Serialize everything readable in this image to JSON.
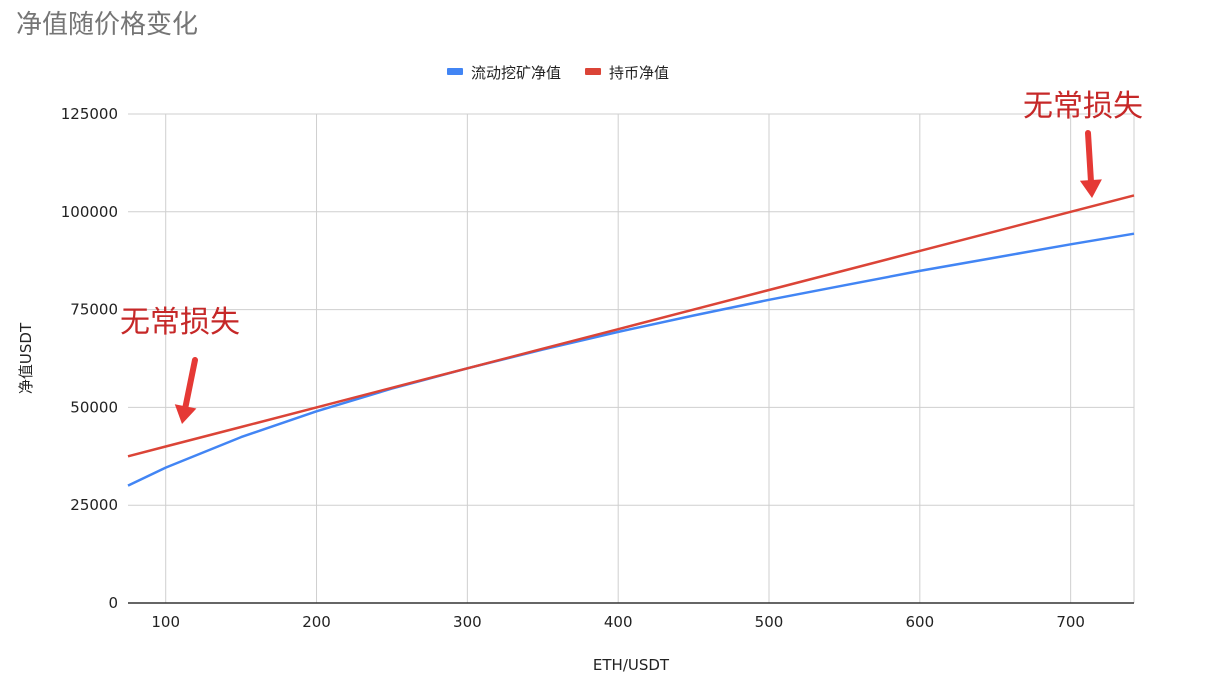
{
  "chart_data": {
    "type": "line",
    "title": "净值随价格变化",
    "xlabel": "ETH/USDT",
    "ylabel": "净值USDT",
    "xlim": [
      75,
      742
    ],
    "ylim": [
      0,
      125000
    ],
    "x_ticks": [
      100,
      200,
      300,
      400,
      500,
      600,
      700
    ],
    "y_ticks": [
      0,
      25000,
      50000,
      75000,
      100000,
      125000
    ],
    "x_tick_labels": [
      "100",
      "200",
      "300",
      "400",
      "500",
      "600",
      "700"
    ],
    "y_tick_labels": [
      "0",
      "25000",
      "50000",
      "75000",
      "100000",
      "125000"
    ],
    "grid": true,
    "legend_position": "top-center",
    "series": [
      {
        "name": "流动挖矿净值",
        "color": "#4285F4",
        "x": [
          75,
          100,
          150,
          200,
          250,
          300,
          350,
          400,
          450,
          500,
          550,
          600,
          650,
          700,
          742
        ],
        "y": [
          30000,
          34600,
          42400,
          49000,
          54800,
          60000,
          64800,
          69300,
          73500,
          77500,
          81200,
          84900,
          88300,
          91700,
          94400
        ]
      },
      {
        "name": "持币净值",
        "color": "#DB4437",
        "x": [
          75,
          100,
          150,
          200,
          250,
          300,
          350,
          400,
          450,
          500,
          550,
          600,
          650,
          700,
          742
        ],
        "y": [
          37500,
          40000,
          45000,
          50000,
          55000,
          60000,
          65000,
          70000,
          75000,
          80000,
          85000,
          90000,
          95000,
          100000,
          104200
        ]
      }
    ],
    "annotations": [
      {
        "text": "无常损失",
        "color": "#C62828",
        "arrow_color": "#E53935",
        "near_x": 100,
        "near_y": 40000,
        "placement": "above-left"
      },
      {
        "text": "无常损失",
        "color": "#C62828",
        "arrow_color": "#E53935",
        "near_x": 700,
        "near_y": 100000,
        "placement": "above-right"
      }
    ]
  }
}
